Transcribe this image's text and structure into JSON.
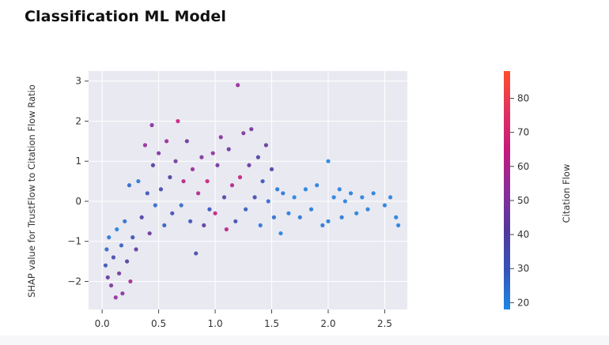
{
  "page": {
    "title": "Classification ML Model"
  },
  "chart_data": {
    "type": "scatter",
    "title": "",
    "xlabel": "",
    "ylabel": "SHAP value for TrustFlow to Citation Flow Ratio",
    "xlim": [
      -0.12,
      2.7
    ],
    "ylim": [
      -2.7,
      3.25
    ],
    "x_ticks": [
      0.0,
      0.5,
      1.0,
      1.5,
      2.0,
      2.5
    ],
    "x_tick_labels": [
      "0.0",
      "0.5",
      "1.0",
      "1.5",
      "2.0",
      "2.5"
    ],
    "y_ticks": [
      -2,
      -1,
      0,
      1,
      2,
      3
    ],
    "y_tick_labels": [
      "−2",
      "−1",
      "0",
      "1",
      "2",
      "3"
    ],
    "grid": true,
    "background": "#e9e9f2",
    "colorbar": {
      "label": "Citation Flow",
      "range": [
        18,
        88
      ],
      "ticks": [
        20,
        30,
        40,
        50,
        60,
        70,
        80
      ],
      "tick_labels": [
        "20",
        "30",
        "40",
        "50",
        "60",
        "70",
        "80"
      ],
      "colors": [
        "#1e88e5",
        "#3553b8",
        "#54389a",
        "#8a2e9a",
        "#c41b7c",
        "#e0325f",
        "#ff4f2b"
      ]
    },
    "points": [
      {
        "x": 0.03,
        "y": -1.6,
        "c": 30
      },
      {
        "x": 0.04,
        "y": -1.2,
        "c": 25
      },
      {
        "x": 0.05,
        "y": -1.9,
        "c": 45
      },
      {
        "x": 0.06,
        "y": -0.9,
        "c": 22
      },
      {
        "x": 0.08,
        "y": -2.1,
        "c": 50
      },
      {
        "x": 0.1,
        "y": -1.4,
        "c": 35
      },
      {
        "x": 0.12,
        "y": -2.4,
        "c": 55
      },
      {
        "x": 0.13,
        "y": -0.7,
        "c": 20
      },
      {
        "x": 0.15,
        "y": -1.8,
        "c": 48
      },
      {
        "x": 0.17,
        "y": -1.1,
        "c": 28
      },
      {
        "x": 0.18,
        "y": -2.3,
        "c": 52
      },
      {
        "x": 0.2,
        "y": -0.5,
        "c": 24
      },
      {
        "x": 0.22,
        "y": -1.5,
        "c": 40
      },
      {
        "x": 0.24,
        "y": 0.4,
        "c": 26
      },
      {
        "x": 0.25,
        "y": -2.0,
        "c": 58
      },
      {
        "x": 0.27,
        "y": -0.9,
        "c": 32
      },
      {
        "x": 0.3,
        "y": -1.2,
        "c": 44
      },
      {
        "x": 0.32,
        "y": 0.5,
        "c": 22
      },
      {
        "x": 0.35,
        "y": -0.4,
        "c": 38
      },
      {
        "x": 0.38,
        "y": 1.4,
        "c": 55
      },
      {
        "x": 0.4,
        "y": 0.2,
        "c": 30
      },
      {
        "x": 0.42,
        "y": -0.8,
        "c": 46
      },
      {
        "x": 0.44,
        "y": 1.9,
        "c": 52
      },
      {
        "x": 0.45,
        "y": 0.9,
        "c": 42
      },
      {
        "x": 0.47,
        "y": -0.1,
        "c": 25
      },
      {
        "x": 0.5,
        "y": 1.2,
        "c": 50
      },
      {
        "x": 0.52,
        "y": 0.3,
        "c": 35
      },
      {
        "x": 0.55,
        "y": -0.6,
        "c": 28
      },
      {
        "x": 0.57,
        "y": 1.5,
        "c": 56
      },
      {
        "x": 0.6,
        "y": 0.6,
        "c": 40
      },
      {
        "x": 0.62,
        "y": -0.3,
        "c": 33
      },
      {
        "x": 0.65,
        "y": 1.0,
        "c": 48
      },
      {
        "x": 0.67,
        "y": 2.0,
        "c": 65
      },
      {
        "x": 0.7,
        "y": -0.1,
        "c": 25
      },
      {
        "x": 0.72,
        "y": 0.5,
        "c": 62
      },
      {
        "x": 0.75,
        "y": 1.5,
        "c": 45
      },
      {
        "x": 0.78,
        "y": -0.5,
        "c": 30
      },
      {
        "x": 0.8,
        "y": 0.8,
        "c": 55
      },
      {
        "x": 0.83,
        "y": -1.3,
        "c": 35
      },
      {
        "x": 0.85,
        "y": 0.2,
        "c": 60
      },
      {
        "x": 0.88,
        "y": 1.1,
        "c": 50
      },
      {
        "x": 0.9,
        "y": -0.6,
        "c": 42
      },
      {
        "x": 0.93,
        "y": 0.5,
        "c": 66
      },
      {
        "x": 0.95,
        "y": -0.2,
        "c": 30
      },
      {
        "x": 0.98,
        "y": 1.2,
        "c": 54
      },
      {
        "x": 1.0,
        "y": -0.3,
        "c": 64
      },
      {
        "x": 1.02,
        "y": 0.9,
        "c": 48
      },
      {
        "x": 1.05,
        "y": 1.6,
        "c": 52
      },
      {
        "x": 1.08,
        "y": 0.1,
        "c": 38
      },
      {
        "x": 1.1,
        "y": -0.7,
        "c": 63
      },
      {
        "x": 1.12,
        "y": 1.3,
        "c": 45
      },
      {
        "x": 1.15,
        "y": 0.4,
        "c": 62
      },
      {
        "x": 1.18,
        "y": -0.5,
        "c": 33
      },
      {
        "x": 1.2,
        "y": 2.9,
        "c": 55
      },
      {
        "x": 1.22,
        "y": 0.6,
        "c": 65
      },
      {
        "x": 1.25,
        "y": 1.7,
        "c": 50
      },
      {
        "x": 1.27,
        "y": -0.2,
        "c": 28
      },
      {
        "x": 1.3,
        "y": 0.9,
        "c": 45
      },
      {
        "x": 1.32,
        "y": 1.8,
        "c": 48
      },
      {
        "x": 1.35,
        "y": 0.1,
        "c": 35
      },
      {
        "x": 1.38,
        "y": 1.1,
        "c": 40
      },
      {
        "x": 1.4,
        "y": -0.6,
        "c": 22
      },
      {
        "x": 1.42,
        "y": 0.5,
        "c": 30
      },
      {
        "x": 1.45,
        "y": 1.4,
        "c": 45
      },
      {
        "x": 1.47,
        "y": 0.0,
        "c": 25
      },
      {
        "x": 1.5,
        "y": 0.8,
        "c": 38
      },
      {
        "x": 1.52,
        "y": -0.4,
        "c": 24
      },
      {
        "x": 1.55,
        "y": 0.3,
        "c": 22
      },
      {
        "x": 1.58,
        "y": -0.8,
        "c": 20
      },
      {
        "x": 1.6,
        "y": 0.2,
        "c": 22
      },
      {
        "x": 1.65,
        "y": -0.3,
        "c": 21
      },
      {
        "x": 1.7,
        "y": 0.1,
        "c": 20
      },
      {
        "x": 1.75,
        "y": -0.4,
        "c": 22
      },
      {
        "x": 1.8,
        "y": 0.3,
        "c": 20
      },
      {
        "x": 1.85,
        "y": -0.2,
        "c": 21
      },
      {
        "x": 1.9,
        "y": 0.4,
        "c": 20
      },
      {
        "x": 1.95,
        "y": -0.6,
        "c": 22
      },
      {
        "x": 2.0,
        "y": 1.0,
        "c": 20
      },
      {
        "x": 2.0,
        "y": -0.5,
        "c": 21
      },
      {
        "x": 2.05,
        "y": 0.1,
        "c": 20
      },
      {
        "x": 2.1,
        "y": 0.3,
        "c": 20
      },
      {
        "x": 2.12,
        "y": -0.4,
        "c": 22
      },
      {
        "x": 2.15,
        "y": 0.0,
        "c": 20
      },
      {
        "x": 2.2,
        "y": 0.2,
        "c": 21
      },
      {
        "x": 2.25,
        "y": -0.3,
        "c": 20
      },
      {
        "x": 2.3,
        "y": 0.1,
        "c": 20
      },
      {
        "x": 2.35,
        "y": -0.2,
        "c": 20
      },
      {
        "x": 2.4,
        "y": 0.2,
        "c": 20
      },
      {
        "x": 2.5,
        "y": -0.1,
        "c": 21
      },
      {
        "x": 2.55,
        "y": 0.1,
        "c": 20
      },
      {
        "x": 2.6,
        "y": -0.4,
        "c": 20
      },
      {
        "x": 2.62,
        "y": -0.6,
        "c": 20
      }
    ]
  }
}
